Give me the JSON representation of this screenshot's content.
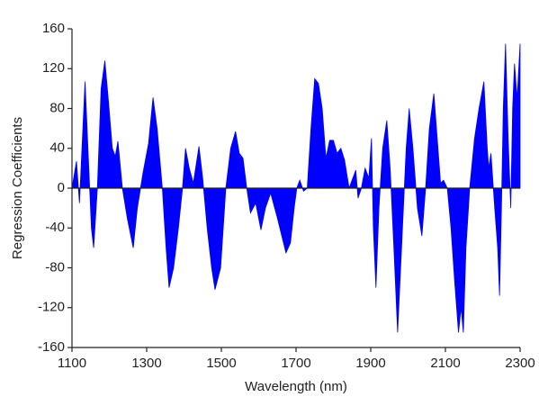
{
  "chart_data": {
    "type": "area",
    "xlabel": "Wavelength (nm)",
    "ylabel": "Regression Coefficients",
    "color": "#0000ff",
    "xlim": [
      1100,
      2300
    ],
    "xticks": [
      1100,
      1300,
      1500,
      1700,
      1900,
      2100,
      2300
    ],
    "ylim": [
      -160,
      160
    ],
    "yticks": [
      -160,
      -120,
      -80,
      -40,
      0,
      40,
      80,
      120,
      160
    ],
    "x": [
      1100,
      1112,
      1120,
      1128,
      1135,
      1145,
      1152,
      1158,
      1168,
      1178,
      1188,
      1197,
      1208,
      1216,
      1223,
      1235,
      1248,
      1264,
      1275,
      1290,
      1305,
      1317,
      1328,
      1342,
      1352,
      1360,
      1372,
      1385,
      1396,
      1404,
      1414,
      1425,
      1440,
      1450,
      1462,
      1474,
      1483,
      1498,
      1512,
      1525,
      1538,
      1548,
      1558,
      1568,
      1578,
      1592,
      1606,
      1618,
      1632,
      1650,
      1673,
      1685,
      1695,
      1702,
      1710,
      1720,
      1730,
      1740,
      1750,
      1760,
      1770,
      1780,
      1790,
      1800,
      1810,
      1820,
      1830,
      1842,
      1852,
      1860,
      1866,
      1875,
      1885,
      1895,
      1902,
      1907,
      1914,
      1922,
      1932,
      1943,
      1952,
      1962,
      1972,
      1985,
      1995,
      2003,
      2013,
      2025,
      2037,
      2047,
      2057,
      2069,
      2078,
      2087,
      2095,
      2105,
      2115,
      2125,
      2135,
      2142,
      2148,
      2155,
      2165,
      2178,
      2190,
      2203,
      2212,
      2216,
      2222,
      2232,
      2240,
      2245,
      2250,
      2255,
      2261,
      2268,
      2275,
      2280,
      2285,
      2292,
      2300
    ],
    "values": [
      0,
      27,
      -15,
      50,
      107,
      20,
      -40,
      -60,
      0,
      100,
      128,
      90,
      40,
      32,
      47,
      0,
      -30,
      -60,
      -20,
      15,
      45,
      91,
      60,
      0,
      -60,
      -100,
      -80,
      -40,
      0,
      40,
      20,
      5,
      42,
      10,
      -40,
      -80,
      -102,
      -80,
      0,
      40,
      57,
      35,
      30,
      0,
      -25,
      -15,
      -42,
      -20,
      -5,
      -30,
      -65,
      -55,
      -20,
      0,
      8,
      -3,
      0,
      60,
      110,
      105,
      80,
      30,
      48,
      48,
      35,
      40,
      28,
      0,
      10,
      18,
      -10,
      0,
      20,
      10,
      50,
      -40,
      -100,
      -20,
      40,
      68,
      20,
      -60,
      -145,
      -40,
      40,
      80,
      40,
      -20,
      -48,
      0,
      60,
      95,
      50,
      5,
      8,
      0,
      -40,
      -95,
      -145,
      -120,
      -145,
      -60,
      0,
      50,
      80,
      107,
      40,
      20,
      35,
      -20,
      -60,
      -108,
      -20,
      80,
      145,
      50,
      -20,
      80,
      125,
      90,
      145
    ]
  }
}
